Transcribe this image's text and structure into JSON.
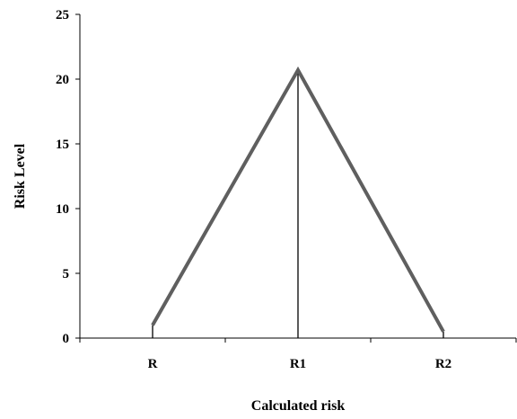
{
  "chart_data": {
    "type": "line",
    "title": "",
    "xlabel": "Calculated risk",
    "ylabel": "Risk Level",
    "categories": [
      "R",
      "R1",
      "R2"
    ],
    "series": [
      {
        "values": [
          1,
          20.7,
          0.5
        ]
      }
    ],
    "ylim": [
      0,
      25
    ],
    "yticks": [
      0,
      5,
      10,
      15,
      20,
      25
    ],
    "grid": false,
    "drop_lines": true,
    "colors": {
      "series": "#5f5f5f",
      "axis": "#000000",
      "drop_line": "#000000"
    }
  }
}
